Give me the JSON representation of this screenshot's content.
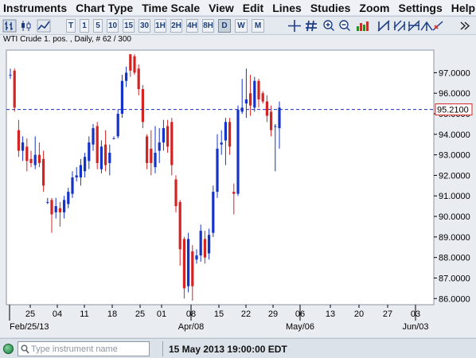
{
  "menu": {
    "items": [
      "Instruments",
      "Chart Type",
      "Time Scale",
      "View",
      "Edit",
      "Lines",
      "Studies",
      "Zoom",
      "Settings",
      "Help"
    ]
  },
  "toolbar": {
    "timeframes": [
      "T",
      "1",
      "5",
      "10",
      "15",
      "30",
      "1H",
      "2H",
      "4H",
      "8H",
      "D",
      "W",
      "M"
    ],
    "active_timeframe": "D",
    "icons": [
      "bar-chart-icon",
      "candlestick-icon",
      "line-chart-icon",
      "crosshair-icon",
      "grid-icon",
      "zoom-in-icon",
      "zoom-out-icon",
      "bar-type-icon",
      "trend-line-icon",
      "channel-icon",
      "fibonacci-icon",
      "pitchfork-icon",
      "delete-lines-icon",
      "more-icon"
    ]
  },
  "chart": {
    "title": "WTI Crude 1. pos. , Daily, # 62 / 300",
    "current_price_label": "95.2100",
    "accent_colors": {
      "up": "#1433c9",
      "down": "#d42323",
      "price_line": "#1a2fbe"
    }
  },
  "chart_data": {
    "type": "candlestick",
    "title": "WTI Crude 1. pos. , Daily, # 62 / 300",
    "ylim": [
      85.7,
      98.1
    ],
    "y_ticks": [
      "97.0000",
      "96.0000",
      "95.0000",
      "94.0000",
      "93.0000",
      "92.0000",
      "91.0000",
      "90.0000",
      "89.0000",
      "88.0000",
      "87.0000",
      "86.0000"
    ],
    "x_day_labels": [
      "25",
      "04",
      "11",
      "18",
      "25",
      "01",
      "08",
      "15",
      "22",
      "29",
      "06",
      "13",
      "20",
      "27",
      "03"
    ],
    "x_month_labels": [
      "Feb/25/13",
      "Apr/08",
      "May/06",
      "Jun/03"
    ],
    "current_price": 95.21,
    "grid": false,
    "candles": [
      {
        "o": 96.9,
        "h": 97.2,
        "l": 96.7,
        "c": 96.9
      },
      {
        "o": 97.1,
        "h": 97.2,
        "l": 95.1,
        "c": 95.3
      },
      {
        "o": 94.2,
        "h": 94.7,
        "l": 92.9,
        "c": 93.2
      },
      {
        "o": 93.2,
        "h": 93.9,
        "l": 92.7,
        "c": 93.6
      },
      {
        "o": 93.4,
        "h": 93.8,
        "l": 92.2,
        "c": 92.7
      },
      {
        "o": 92.8,
        "h": 93.2,
        "l": 92.4,
        "c": 92.6
      },
      {
        "o": 92.5,
        "h": 93.9,
        "l": 92.3,
        "c": 93.0
      },
      {
        "o": 93.0,
        "h": 93.6,
        "l": 92.4,
        "c": 92.6
      },
      {
        "o": 92.8,
        "h": 93.2,
        "l": 91.2,
        "c": 91.5
      },
      {
        "o": 90.7,
        "h": 90.9,
        "l": 90.6,
        "c": 90.7
      },
      {
        "o": 90.8,
        "h": 90.9,
        "l": 89.2,
        "c": 90.1
      },
      {
        "o": 90.2,
        "h": 90.9,
        "l": 89.9,
        "c": 90.5
      },
      {
        "o": 90.4,
        "h": 90.7,
        "l": 89.5,
        "c": 90.2
      },
      {
        "o": 90.2,
        "h": 91.0,
        "l": 89.9,
        "c": 90.8
      },
      {
        "o": 90.6,
        "h": 91.4,
        "l": 90.4,
        "c": 91.2
      },
      {
        "o": 91.1,
        "h": 92.2,
        "l": 90.9,
        "c": 91.9
      },
      {
        "o": 91.9,
        "h": 92.4,
        "l": 91.7,
        "c": 92.0
      },
      {
        "o": 91.9,
        "h": 92.8,
        "l": 91.5,
        "c": 92.5
      },
      {
        "o": 92.2,
        "h": 93.1,
        "l": 91.9,
        "c": 92.9
      },
      {
        "o": 92.7,
        "h": 93.9,
        "l": 92.3,
        "c": 93.6
      },
      {
        "o": 93.5,
        "h": 94.5,
        "l": 93.2,
        "c": 94.3
      },
      {
        "o": 94.4,
        "h": 94.6,
        "l": 92.3,
        "c": 92.6
      },
      {
        "o": 92.3,
        "h": 93.7,
        "l": 92.1,
        "c": 93.4
      },
      {
        "o": 93.5,
        "h": 94.2,
        "l": 92.2,
        "c": 92.5
      },
      {
        "o": 92.6,
        "h": 93.5,
        "l": 92.0,
        "c": 93.1
      },
      {
        "o": 93.8,
        "h": 93.9,
        "l": 93.8,
        "c": 93.8
      },
      {
        "o": 93.9,
        "h": 95.2,
        "l": 93.8,
        "c": 95.0
      },
      {
        "o": 95.0,
        "h": 96.9,
        "l": 94.8,
        "c": 96.6
      },
      {
        "o": 96.6,
        "h": 97.3,
        "l": 96.3,
        "c": 97.0
      },
      {
        "o": 97.9,
        "h": 97.9,
        "l": 96.8,
        "c": 97.1
      },
      {
        "o": 97.8,
        "h": 97.9,
        "l": 96.9,
        "c": 97.0
      },
      {
        "o": 97.2,
        "h": 97.4,
        "l": 95.9,
        "c": 96.2
      },
      {
        "o": 96.2,
        "h": 96.4,
        "l": 94.3,
        "c": 94.6
      },
      {
        "o": 93.9,
        "h": 94.0,
        "l": 92.3,
        "c": 92.6
      },
      {
        "o": 93.3,
        "h": 94.2,
        "l": 92.0,
        "c": 92.6
      },
      {
        "o": 92.4,
        "h": 94.4,
        "l": 92.1,
        "c": 93.1
      },
      {
        "o": 93.2,
        "h": 94.3,
        "l": 92.6,
        "c": 93.6
      },
      {
        "o": 93.6,
        "h": 94.7,
        "l": 93.2,
        "c": 94.3
      },
      {
        "o": 94.4,
        "h": 94.7,
        "l": 93.1,
        "c": 93.4
      },
      {
        "o": 94.6,
        "h": 94.8,
        "l": 92.0,
        "c": 92.5
      },
      {
        "o": 91.8,
        "h": 92.0,
        "l": 90.2,
        "c": 90.5
      },
      {
        "o": 90.7,
        "h": 90.8,
        "l": 87.6,
        "c": 88.4
      },
      {
        "o": 88.9,
        "h": 89.0,
        "l": 86.0,
        "c": 86.5
      },
      {
        "o": 86.6,
        "h": 89.2,
        "l": 86.3,
        "c": 88.9
      },
      {
        "o": 88.3,
        "h": 88.6,
        "l": 85.9,
        "c": 86.6
      },
      {
        "o": 87.9,
        "h": 88.4,
        "l": 87.7,
        "c": 88.1
      },
      {
        "o": 88.1,
        "h": 89.6,
        "l": 87.8,
        "c": 89.3
      },
      {
        "o": 88.9,
        "h": 89.3,
        "l": 87.7,
        "c": 88.0
      },
      {
        "o": 88.2,
        "h": 89.4,
        "l": 87.9,
        "c": 89.1
      },
      {
        "o": 89.2,
        "h": 91.5,
        "l": 89.0,
        "c": 91.2
      },
      {
        "o": 91.2,
        "h": 94.0,
        "l": 90.9,
        "c": 93.3
      },
      {
        "o": 93.5,
        "h": 94.2,
        "l": 93.0,
        "c": 93.6
      },
      {
        "o": 93.7,
        "h": 94.8,
        "l": 92.5,
        "c": 94.6
      },
      {
        "o": 94.6,
        "h": 94.8,
        "l": 93.0,
        "c": 93.4
      },
      {
        "o": 91.2,
        "h": 91.6,
        "l": 90.1,
        "c": 91.1
      },
      {
        "o": 91.1,
        "h": 95.4,
        "l": 91.0,
        "c": 95.2
      },
      {
        "o": 95.1,
        "h": 96.7,
        "l": 95.0,
        "c": 95.3
      },
      {
        "o": 95.5,
        "h": 97.2,
        "l": 94.8,
        "c": 95.7
      },
      {
        "o": 96.0,
        "h": 96.9,
        "l": 94.9,
        "c": 95.4
      },
      {
        "o": 95.3,
        "h": 96.8,
        "l": 95.1,
        "c": 96.6
      },
      {
        "o": 96.6,
        "h": 96.7,
        "l": 95.3,
        "c": 95.7
      },
      {
        "o": 96.0,
        "h": 96.1,
        "l": 95.5,
        "c": 95.6
      },
      {
        "o": 95.6,
        "h": 95.9,
        "l": 94.6,
        "c": 94.9
      },
      {
        "o": 95.1,
        "h": 95.4,
        "l": 93.9,
        "c": 94.2
      },
      {
        "o": 94.4,
        "h": 94.5,
        "l": 92.2,
        "c": 94.4
      },
      {
        "o": 94.3,
        "h": 95.6,
        "l": 93.3,
        "c": 95.3
      }
    ]
  },
  "status": {
    "search_placeholder": "Type instrument name",
    "datetime": "15 May 2013 19:00:00 EDT"
  }
}
